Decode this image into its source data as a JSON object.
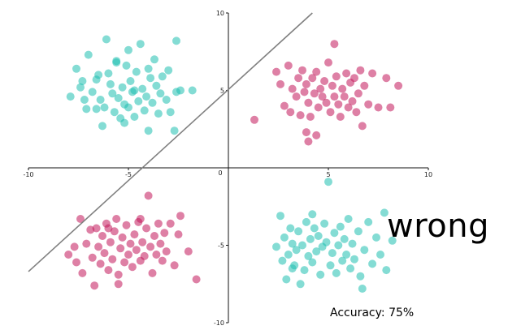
{
  "chart_data": {
    "type": "scatter",
    "title": "",
    "xlabel": "",
    "ylabel": "",
    "xlim": [
      -10,
      10
    ],
    "ylim": [
      -10,
      10
    ],
    "xticks": [
      -10,
      -5,
      0,
      5,
      10
    ],
    "yticks": [
      -10,
      -5,
      5,
      10
    ],
    "xtick_labels": [
      "-10",
      "-5",
      "0",
      "5",
      "10"
    ],
    "ytick_labels": [
      "-10",
      "-5",
      "5",
      "10"
    ],
    "grid": false,
    "colors": {
      "teal": "#1fbfb0",
      "crimson": "#c2185b",
      "line": "#808080"
    },
    "series": [
      {
        "color": "#1fbfb0",
        "points": [
          [
            -7.9,
            4.6
          ],
          [
            -7.6,
            6.4
          ],
          [
            -7.4,
            5.2
          ],
          [
            -7.3,
            5.6
          ],
          [
            -7.2,
            4.4
          ],
          [
            -7.1,
            3.8
          ],
          [
            -7.0,
            7.3
          ],
          [
            -6.8,
            4.9
          ],
          [
            -6.6,
            5.7
          ],
          [
            -6.5,
            6.0
          ],
          [
            -6.4,
            4.4
          ],
          [
            -6.3,
            2.7
          ],
          [
            -6.2,
            3.9
          ],
          [
            -6.1,
            8.3
          ],
          [
            -6.0,
            6.1
          ],
          [
            -5.9,
            5.4
          ],
          [
            -5.8,
            4.8
          ],
          [
            -5.7,
            3.6
          ],
          [
            -5.6,
            6.8
          ],
          [
            -5.5,
            4.5
          ],
          [
            -5.4,
            3.2
          ],
          [
            -5.3,
            5.2
          ],
          [
            -5.2,
            4.1
          ],
          [
            -5.1,
            6.6
          ],
          [
            -5.0,
            7.6
          ],
          [
            -5.0,
            3.9
          ],
          [
            -4.9,
            5.6
          ],
          [
            -4.8,
            4.9
          ],
          [
            -4.7,
            3.3
          ],
          [
            -4.6,
            6.2
          ],
          [
            -4.5,
            4.3
          ],
          [
            -4.4,
            8.0
          ],
          [
            -4.3,
            5.1
          ],
          [
            -4.2,
            3.7
          ],
          [
            -4.1,
            4.6
          ],
          [
            -4.0,
            6.4
          ],
          [
            -4.0,
            2.4
          ],
          [
            -3.9,
            5.8
          ],
          [
            -3.8,
            4.2
          ],
          [
            -3.7,
            7.0
          ],
          [
            -3.6,
            5.3
          ],
          [
            -3.5,
            3.5
          ],
          [
            -3.4,
            4.8
          ],
          [
            -3.3,
            5.9
          ],
          [
            -3.1,
            4.4
          ],
          [
            -3.0,
            6.3
          ],
          [
            -2.9,
            3.6
          ],
          [
            -2.7,
            2.4
          ],
          [
            -2.6,
            4.9
          ],
          [
            -2.4,
            5.0
          ],
          [
            -1.8,
            5.0
          ],
          [
            -2.6,
            8.2
          ],
          [
            -5.6,
            6.9
          ],
          [
            -4.7,
            5.0
          ],
          [
            -6.6,
            3.8
          ],
          [
            -5.2,
            2.9
          ]
        ]
      },
      {
        "color": "#c2185b",
        "points": [
          [
            1.3,
            3.1
          ],
          [
            2.4,
            6.2
          ],
          [
            2.6,
            5.4
          ],
          [
            2.8,
            4.0
          ],
          [
            3.0,
            6.6
          ],
          [
            3.1,
            3.6
          ],
          [
            3.2,
            5.1
          ],
          [
            3.4,
            4.6
          ],
          [
            3.5,
            5.8
          ],
          [
            3.6,
            3.4
          ],
          [
            3.7,
            6.3
          ],
          [
            3.8,
            4.9
          ],
          [
            3.9,
            5.4
          ],
          [
            4.0,
            4.2
          ],
          [
            4.1,
            3.3
          ],
          [
            4.2,
            5.8
          ],
          [
            4.3,
            4.8
          ],
          [
            4.4,
            6.2
          ],
          [
            4.5,
            3.9
          ],
          [
            4.6,
            5.1
          ],
          [
            4.7,
            4.6
          ],
          [
            4.8,
            5.6
          ],
          [
            4.9,
            4.2
          ],
          [
            5.0,
            6.8
          ],
          [
            5.1,
            3.6
          ],
          [
            5.2,
            5.3
          ],
          [
            5.3,
            4.6
          ],
          [
            5.4,
            5.9
          ],
          [
            5.5,
            4.1
          ],
          [
            5.6,
            3.3
          ],
          [
            5.7,
            5.1
          ],
          [
            5.8,
            4.6
          ],
          [
            5.9,
            6.1
          ],
          [
            6.0,
            3.9
          ],
          [
            6.1,
            5.5
          ],
          [
            6.2,
            4.3
          ],
          [
            6.3,
            5.8
          ],
          [
            6.4,
            3.6
          ],
          [
            6.5,
            4.8
          ],
          [
            6.6,
            6.3
          ],
          [
            6.7,
            2.7
          ],
          [
            6.8,
            5.3
          ],
          [
            7.0,
            4.1
          ],
          [
            7.2,
            6.1
          ],
          [
            7.5,
            3.9
          ],
          [
            7.9,
            5.8
          ],
          [
            8.1,
            3.9
          ],
          [
            8.5,
            5.3
          ],
          [
            4.0,
            1.7
          ],
          [
            4.4,
            2.1
          ],
          [
            5.3,
            8.0
          ],
          [
            3.9,
            2.3
          ]
        ]
      },
      {
        "color": "#c2185b",
        "points": [
          [
            -8.0,
            -5.6
          ],
          [
            -7.6,
            -6.1
          ],
          [
            -7.4,
            -3.3
          ],
          [
            -7.3,
            -6.8
          ],
          [
            -7.1,
            -4.9
          ],
          [
            -6.9,
            -4.0
          ],
          [
            -6.8,
            -5.8
          ],
          [
            -6.7,
            -7.6
          ],
          [
            -6.6,
            -3.9
          ],
          [
            -6.5,
            -5.1
          ],
          [
            -6.4,
            -6.2
          ],
          [
            -6.3,
            -4.4
          ],
          [
            -6.2,
            -5.5
          ],
          [
            -6.1,
            -3.6
          ],
          [
            -6.0,
            -6.6
          ],
          [
            -5.9,
            -4.8
          ],
          [
            -5.8,
            -5.9
          ],
          [
            -5.7,
            -4.1
          ],
          [
            -5.6,
            -3.3
          ],
          [
            -5.5,
            -6.9
          ],
          [
            -5.4,
            -5.2
          ],
          [
            -5.3,
            -4.5
          ],
          [
            -5.2,
            -6.1
          ],
          [
            -5.1,
            -3.7
          ],
          [
            -5.0,
            -5.6
          ],
          [
            -4.9,
            -4.9
          ],
          [
            -4.8,
            -6.4
          ],
          [
            -4.7,
            -4.3
          ],
          [
            -4.6,
            -5.3
          ],
          [
            -4.5,
            -3.5
          ],
          [
            -4.4,
            -6.0
          ],
          [
            -4.3,
            -4.8
          ],
          [
            -4.2,
            -5.7
          ],
          [
            -4.1,
            -3.9
          ],
          [
            -4.0,
            -1.8
          ],
          [
            -3.9,
            -5.1
          ],
          [
            -3.8,
            -6.8
          ],
          [
            -3.7,
            -4.4
          ],
          [
            -3.6,
            -5.6
          ],
          [
            -3.5,
            -3.6
          ],
          [
            -3.4,
            -4.9
          ],
          [
            -3.3,
            -6.0
          ],
          [
            -3.2,
            -4.2
          ],
          [
            -3.1,
            -5.4
          ],
          [
            -2.9,
            -3.6
          ],
          [
            -2.7,
            -6.3
          ],
          [
            -2.5,
            -4.3
          ],
          [
            -2.4,
            -3.1
          ],
          [
            -2.0,
            -5.4
          ],
          [
            -1.6,
            -7.2
          ],
          [
            -6.0,
            -3.9
          ],
          [
            -5.5,
            -7.5
          ],
          [
            -7.7,
            -5.1
          ],
          [
            -4.4,
            -3.3
          ]
        ]
      },
      {
        "color": "#1fbfb0",
        "points": [
          [
            2.4,
            -5.1
          ],
          [
            2.6,
            -3.1
          ],
          [
            2.7,
            -6.0
          ],
          [
            2.8,
            -4.5
          ],
          [
            2.9,
            -7.2
          ],
          [
            3.0,
            -5.6
          ],
          [
            3.1,
            -3.9
          ],
          [
            3.2,
            -4.9
          ],
          [
            3.3,
            -6.3
          ],
          [
            3.4,
            -5.3
          ],
          [
            3.5,
            -4.1
          ],
          [
            3.6,
            -7.5
          ],
          [
            3.7,
            -5.0
          ],
          [
            3.8,
            -6.6
          ],
          [
            3.9,
            -3.5
          ],
          [
            4.0,
            -5.7
          ],
          [
            4.1,
            -4.6
          ],
          [
            4.2,
            -6.1
          ],
          [
            4.3,
            -3.9
          ],
          [
            4.4,
            -5.4
          ],
          [
            4.5,
            -4.4
          ],
          [
            4.6,
            -6.9
          ],
          [
            4.7,
            -5.1
          ],
          [
            4.8,
            -3.6
          ],
          [
            4.9,
            -4.8
          ],
          [
            5.0,
            -0.9
          ],
          [
            5.1,
            -6.3
          ],
          [
            5.2,
            -5.5
          ],
          [
            5.3,
            -4.2
          ],
          [
            5.4,
            -6.8
          ],
          [
            5.5,
            -5.0
          ],
          [
            5.6,
            -3.8
          ],
          [
            5.7,
            -6.0
          ],
          [
            5.8,
            -4.6
          ],
          [
            5.9,
            -5.6
          ],
          [
            6.0,
            -3.3
          ],
          [
            6.1,
            -6.5
          ],
          [
            6.2,
            -4.9
          ],
          [
            6.3,
            -5.9
          ],
          [
            6.5,
            -4.1
          ],
          [
            6.6,
            -7.0
          ],
          [
            6.8,
            -5.3
          ],
          [
            7.0,
            -3.5
          ],
          [
            7.2,
            -6.2
          ],
          [
            7.4,
            -4.5
          ],
          [
            7.6,
            -5.6
          ],
          [
            7.8,
            -2.9
          ],
          [
            7.9,
            -6.6
          ],
          [
            8.2,
            -4.7
          ],
          [
            4.2,
            -3.0
          ],
          [
            6.7,
            -7.8
          ],
          [
            3.2,
            -6.5
          ]
        ]
      }
    ],
    "decision_line": {
      "x": [
        -10,
        4.2
      ],
      "y": [
        -6.7,
        10
      ]
    },
    "annotations": {
      "wrong": "wrong",
      "accuracy": "Accuracy: 75%"
    }
  }
}
